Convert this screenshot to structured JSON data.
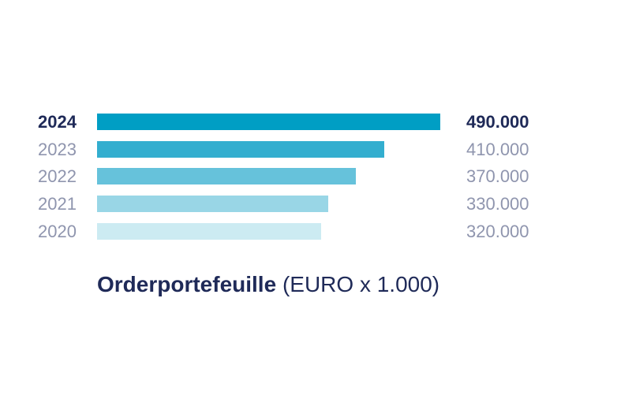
{
  "chart_data": {
    "type": "bar",
    "orientation": "horizontal",
    "title": "Orderportefeuille",
    "subtitle": "(EURO x 1.000)",
    "categories": [
      "2024",
      "2023",
      "2022",
      "2021",
      "2020"
    ],
    "values": [
      490000,
      410000,
      370000,
      330000,
      320000
    ],
    "value_labels": [
      "490.000",
      "410.000",
      "370.000",
      "330.000",
      "320.000"
    ],
    "highlight": "2024",
    "colors": [
      "#009ec4",
      "#33aecf",
      "#66c2db",
      "#99d6e6",
      "#ccebf2"
    ],
    "label_color": "#8f95ae",
    "highlight_color": "#1f2a58",
    "xlim": [
      0,
      490000
    ],
    "grid": false,
    "legend": "none"
  }
}
